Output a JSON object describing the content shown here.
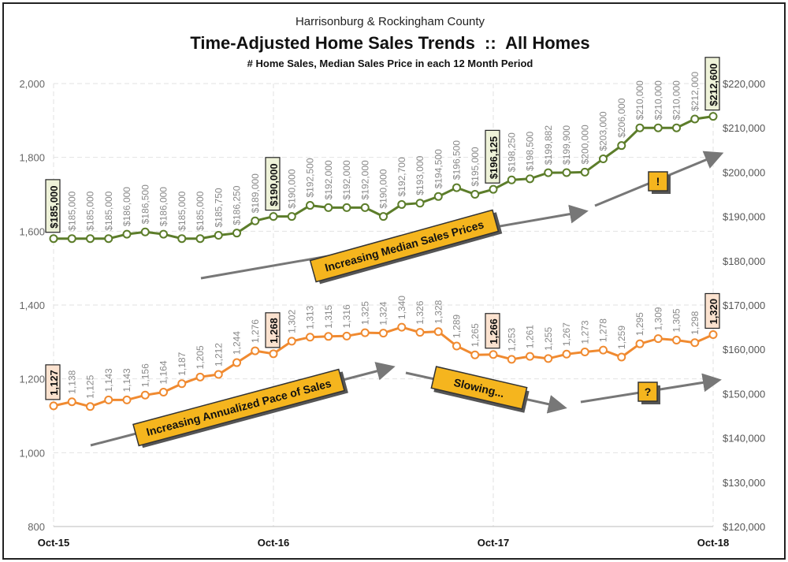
{
  "chart_data": {
    "type": "line",
    "title": "Time-Adjusted Home Sales Trends  ::  All Homes",
    "supertitle": "Harrisonburg & Rockingham County",
    "subtitle": "# Home Sales, Median Sales Price in each 12 Month Period",
    "x_tick_labels": [
      "Oct-15",
      "Oct-16",
      "Oct-17",
      "Oct-18"
    ],
    "left_axis": {
      "range": [
        800,
        2000
      ],
      "ticks": [
        "800",
        "1,000",
        "1,200",
        "1,400",
        "1,600",
        "1,800",
        "2,000"
      ]
    },
    "right_axis": {
      "range": [
        120000,
        220000
      ],
      "ticks": [
        "$120,000",
        "$130,000",
        "$140,000",
        "$150,000",
        "$160,000",
        "$170,000",
        "$180,000",
        "$190,000",
        "$200,000",
        "$210,000",
        "$220,000"
      ]
    },
    "series": [
      {
        "axis": "right",
        "color": "#5c7d2a",
        "values": [
          185000,
          185000,
          185000,
          185000,
          186000,
          186500,
          186000,
          185000,
          185000,
          185750,
          186250,
          189000,
          190000,
          190000,
          192500,
          192000,
          192000,
          192000,
          190000,
          192700,
          193000,
          194500,
          196500,
          195000,
          196125,
          198250,
          198500,
          199882,
          199900,
          200000,
          203000,
          206000,
          210000,
          210000,
          210000,
          212000,
          212600
        ],
        "labels": [
          "$185,000",
          "$185,000",
          "$185,000",
          "$185,000",
          "$186,000",
          "$186,500",
          "$186,000",
          "$185,000",
          "$185,000",
          "$185,750",
          "$186,250",
          "$189,000",
          "$190,000",
          "$190,000",
          "$192,500",
          "$192,000",
          "$192,000",
          "$192,000",
          "$190,000",
          "$192,700",
          "$193,000",
          "$194,500",
          "$196,500",
          "$195,000",
          "$196,125",
          "$198,250",
          "$198,500",
          "$199,882",
          "$199,900",
          "$200,000",
          "$203,000",
          "$206,000",
          "$210,000",
          "$210,000",
          "$210,000",
          "$212,000",
          "$212,600"
        ],
        "highlight_indices": [
          0,
          12,
          24,
          36
        ]
      },
      {
        "axis": "left",
        "color": "#f08a30",
        "values": [
          1127,
          1138,
          1125,
          1143,
          1143,
          1156,
          1164,
          1187,
          1205,
          1212,
          1244,
          1276,
          1268,
          1302,
          1313,
          1315,
          1316,
          1325,
          1324,
          1340,
          1326,
          1328,
          1289,
          1265,
          1266,
          1253,
          1261,
          1255,
          1267,
          1273,
          1278,
          1259,
          1295,
          1309,
          1305,
          1298,
          1320
        ],
        "labels": [
          "1,127",
          "1,138",
          "1,125",
          "1,143",
          "1,143",
          "1,156",
          "1,164",
          "1,187",
          "1,205",
          "1,212",
          "1,244",
          "1,276",
          "1,268",
          "1,302",
          "1,313",
          "1,315",
          "1,316",
          "1,325",
          "1,324",
          "1,340",
          "1,326",
          "1,328",
          "1,289",
          "1,265",
          "1,266",
          "1,253",
          "1,261",
          "1,255",
          "1,267",
          "1,273",
          "1,278",
          "1,259",
          "1,295",
          "1,309",
          "1,305",
          "1,298",
          "1,320"
        ],
        "highlight_indices": [
          0,
          12,
          24,
          36
        ]
      }
    ],
    "annotations": [
      {
        "text": "Increasing Median Sales Prices"
      },
      {
        "text": "!"
      },
      {
        "text": "Increasing Annualized Pace of Sales"
      },
      {
        "text": "Slowing..."
      },
      {
        "text": "?"
      }
    ],
    "grid": true
  }
}
